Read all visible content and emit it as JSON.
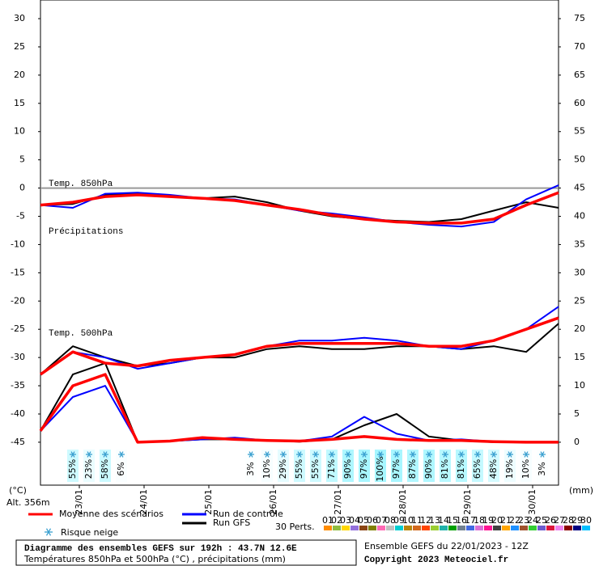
{
  "chart_data": {
    "type": "line",
    "title": "Diagramme des ensembles GEFS sur 192h : 43.7N 12.6E",
    "subtitle": "Températures 850hPa et 500hPa (°C) , précipitations (mm)",
    "run_info": "Ensemble GEFS du 22/01/2023 - 12Z",
    "copyright": "Copyright 2023 Meteociel.fr",
    "y_label": "(°C)",
    "y2_label": "(mm)",
    "altitude": "Alt. 356m",
    "annotations": [
      "Temp. 850hPa",
      "Précipitations",
      "Temp. 500hPa"
    ],
    "zero_line": true,
    "xlim": [
      0.4,
      8.4
    ],
    "xticks": [
      {
        "value": 1,
        "label": "23/01"
      },
      {
        "value": 2,
        "label": "24/01"
      },
      {
        "value": 3,
        "label": "25/01"
      },
      {
        "value": 4,
        "label": "26/01"
      },
      {
        "value": 5,
        "label": "27/01"
      },
      {
        "value": 6,
        "label": "28/01"
      },
      {
        "value": 7,
        "label": "29/01"
      },
      {
        "value": 8,
        "label": "30/01"
      }
    ],
    "ylim": [
      -52.6,
      33.3
    ],
    "yticks": [
      -45,
      -40,
      -35,
      -30,
      -25,
      -20,
      -15,
      -10,
      -5,
      0,
      5,
      10,
      15,
      20,
      25,
      30
    ],
    "y2lim": [
      -7.6,
      78.3
    ],
    "y2ticks": [
      0,
      5,
      10,
      15,
      20,
      25,
      30,
      35,
      40,
      45,
      50,
      55,
      60,
      65,
      70,
      75
    ],
    "x": [
      0.4,
      0.9,
      1.4,
      1.9,
      2.4,
      2.9,
      3.4,
      3.9,
      4.4,
      4.9,
      5.4,
      5.9,
      6.4,
      6.9,
      7.4,
      7.9,
      8.4
    ],
    "runs": [
      {
        "name": "Moyenne des scénarios",
        "color": "#ff0000",
        "t850": [
          -3,
          -2.5,
          -1.5,
          -1.2,
          -1.5,
          -1.8,
          -2.2,
          -3,
          -3.8,
          -4.8,
          -5.5,
          -6,
          -6.2,
          -6.2,
          -5.5,
          -3,
          -0.8
        ],
        "t500": [
          -33,
          -29,
          -31,
          -31.5,
          -30.5,
          -30,
          -29.5,
          -28,
          -27.5,
          -27.5,
          -27.5,
          -27.5,
          -28,
          -28,
          -27,
          -25,
          -23
        ],
        "precip": [
          2,
          10,
          12,
          0,
          0.2,
          0.8,
          0.5,
          0.3,
          0.2,
          0.5,
          1,
          0.5,
          0.3,
          0.3,
          0.1,
          0,
          0
        ]
      },
      {
        "name": "Run de contrôle",
        "color": "#0000ff",
        "t850": [
          -3,
          -3.5,
          -1,
          -0.8,
          -1.2,
          -1.8,
          -2,
          -3,
          -4,
          -4.5,
          -5.2,
          -6,
          -6.5,
          -6.8,
          -6,
          -2,
          0.5
        ],
        "t500": [
          -33,
          -29,
          -30,
          -32,
          -31,
          -30,
          -29.5,
          -28,
          -27,
          -27,
          -26.5,
          -27,
          -28,
          -28.5,
          -27,
          -25,
          -21
        ],
        "precip": [
          2,
          8,
          10,
          0,
          0.2,
          0.5,
          0.8,
          0.3,
          0.2,
          1,
          4.5,
          1.5,
          0.3,
          0.5,
          0.1,
          0,
          0
        ]
      },
      {
        "name": "Run GFS",
        "color": "#000000",
        "t850": [
          -3,
          -2.8,
          -1.2,
          -1,
          -1.5,
          -1.8,
          -1.5,
          -2.5,
          -4,
          -5,
          -5.5,
          -5.8,
          -6,
          -5.5,
          -4,
          -2.5,
          -3.5
        ],
        "t500": [
          -33,
          -28,
          -30,
          -31.5,
          -31,
          -30,
          -30,
          -28.5,
          -28,
          -28.5,
          -28.5,
          -28,
          -28,
          -28.5,
          -28,
          -29,
          -24
        ],
        "precip": [
          2,
          12,
          14,
          0,
          0.2,
          0.5,
          0.5,
          0.3,
          0.1,
          0.5,
          3,
          5,
          1,
          0.3,
          0,
          0,
          0
        ]
      }
    ],
    "snow_risk": {
      "name": "Risque neige",
      "color": "#00e5ff",
      "x": [
        0.9,
        1.15,
        1.4,
        1.65,
        3.65,
        3.9,
        4.15,
        4.4,
        4.65,
        4.9,
        5.15,
        5.4,
        5.65,
        5.9,
        6.15,
        6.4,
        6.65,
        6.9,
        7.15,
        7.4,
        7.65,
        7.9,
        8.15
      ],
      "values": [
        55,
        23,
        58,
        6,
        3,
        10,
        29,
        55,
        55,
        71,
        90,
        97,
        100,
        97,
        87,
        90,
        81,
        81,
        65,
        48,
        19,
        10,
        3
      ],
      "value_labels": [
        "55%",
        "23%",
        "58%",
        "6%",
        "3%",
        "10%",
        "29%",
        "55%",
        "55%",
        "71%",
        "90%",
        "97%",
        "100%",
        "97%",
        "87%",
        "90%",
        "81%",
        "81%",
        "65%",
        "48%",
        "19%",
        "10%",
        "3%"
      ]
    },
    "perturbations": {
      "label": "30 Perts.",
      "members": [
        {
          "name": "01",
          "color": "#ff8c00"
        },
        {
          "name": "02",
          "color": "#8fbc3f"
        },
        {
          "name": "03",
          "color": "#ffd700"
        },
        {
          "name": "04",
          "color": "#9370db"
        },
        {
          "name": "05",
          "color": "#8b4513"
        },
        {
          "name": "06",
          "color": "#808000"
        },
        {
          "name": "07",
          "color": "#ff69b4"
        },
        {
          "name": "08",
          "color": "#c0c0c0"
        },
        {
          "name": "09",
          "color": "#00ced1"
        },
        {
          "name": "10",
          "color": "#b8860b"
        },
        {
          "name": "11",
          "color": "#d2691e"
        },
        {
          "name": "12",
          "color": "#ff4500"
        },
        {
          "name": "13",
          "color": "#9acd32"
        },
        {
          "name": "14",
          "color": "#20b2aa"
        },
        {
          "name": "15",
          "color": "#00a000"
        },
        {
          "name": "16",
          "color": "#708090"
        },
        {
          "name": "17",
          "color": "#4169e1"
        },
        {
          "name": "18",
          "color": "#da70d6"
        },
        {
          "name": "19",
          "color": "#ff1493"
        },
        {
          "name": "20",
          "color": "#404040"
        },
        {
          "name": "21",
          "color": "#ffa500"
        },
        {
          "name": "22",
          "color": "#1e90ff"
        },
        {
          "name": "23",
          "color": "#a0522d"
        },
        {
          "name": "24",
          "color": "#32cd32"
        },
        {
          "name": "25",
          "color": "#6a5acd"
        },
        {
          "name": "26",
          "color": "#dc143c"
        },
        {
          "name": "27",
          "color": "#ee82ee"
        },
        {
          "name": "28",
          "color": "#8b0000"
        },
        {
          "name": "29",
          "color": "#000080"
        },
        {
          "name": "30",
          "color": "#00bfff"
        }
      ]
    }
  }
}
